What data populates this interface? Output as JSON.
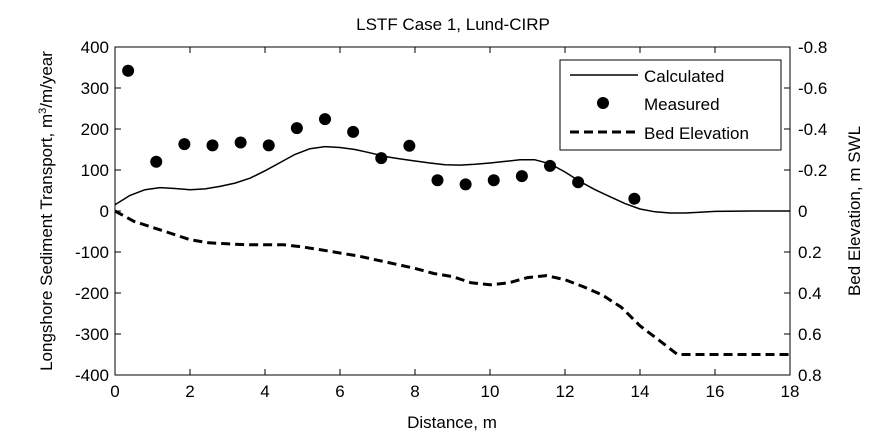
{
  "chart_data": {
    "type": "line",
    "title": "LSTF Case 1, Lund-CIRP",
    "xlabel": "Distance, m",
    "ylabel_left_prefix": "Longshore Sediment Transport, m",
    "ylabel_left_sup": "3",
    "ylabel_left_suffix": "/m/year",
    "ylabel_right": "Bed Elevation, m SWL",
    "xlim": [
      0,
      18
    ],
    "ylim_left": [
      -400,
      400
    ],
    "ylim_right": [
      0.8,
      -0.8
    ],
    "x_ticks": [
      "0",
      "2",
      "4",
      "6",
      "8",
      "10",
      "12",
      "14",
      "16",
      "18"
    ],
    "y_left_ticks": [
      "400",
      "300",
      "200",
      "100",
      "0",
      "-100",
      "-200",
      "-300",
      "-400"
    ],
    "y_right_ticks": [
      "-0.8",
      "-0.6",
      "-0.4",
      "-0.2",
      "0",
      "0.2",
      "0.4",
      "0.6",
      "0.8"
    ],
    "grid": false,
    "legend_position": "top-right",
    "legend": [
      "Calculated",
      "Measured",
      "Bed Elevation"
    ],
    "series": [
      {
        "name": "Calculated",
        "style": "solid-line",
        "axis": "left",
        "x": [
          0,
          0.4,
          0.8,
          1.2,
          1.6,
          2.0,
          2.4,
          2.8,
          3.2,
          3.6,
          4.0,
          4.4,
          4.8,
          5.2,
          5.6,
          6.0,
          6.4,
          6.8,
          7.2,
          7.6,
          8.0,
          8.4,
          8.8,
          9.2,
          9.6,
          10.0,
          10.4,
          10.8,
          11.2,
          11.6,
          12.0,
          12.4,
          12.8,
          13.2,
          13.6,
          14.0,
          14.4,
          14.8,
          15.2,
          15.6,
          16.0,
          17.0,
          18.0
        ],
        "y": [
          15,
          38,
          52,
          57,
          55,
          52,
          54,
          60,
          68,
          80,
          98,
          118,
          138,
          152,
          157,
          155,
          150,
          142,
          133,
          127,
          122,
          117,
          113,
          112,
          114,
          117,
          121,
          125,
          125,
          115,
          95,
          72,
          52,
          35,
          18,
          5,
          -2,
          -5,
          -5,
          -3,
          -1,
          0,
          0
        ]
      },
      {
        "name": "Measured",
        "style": "markers",
        "axis": "left",
        "x": [
          0.35,
          1.1,
          1.85,
          2.6,
          3.35,
          4.1,
          4.85,
          5.6,
          6.35,
          7.1,
          7.85,
          8.6,
          9.35,
          10.1,
          10.85,
          11.6,
          12.35,
          13.85
        ],
        "y": [
          342,
          120,
          163,
          160,
          167,
          160,
          202,
          224,
          193,
          129,
          159,
          75,
          65,
          75,
          85,
          110,
          70,
          30
        ]
      },
      {
        "name": "Bed Elevation",
        "style": "dashed-line",
        "axis": "right",
        "x": [
          0,
          0.5,
          1.0,
          1.5,
          2.0,
          2.5,
          3.0,
          3.5,
          4.0,
          4.5,
          5.0,
          5.5,
          6.0,
          6.5,
          7.0,
          7.5,
          8.0,
          8.5,
          9.0,
          9.5,
          10.0,
          10.5,
          11.0,
          11.5,
          12.0,
          12.5,
          13.0,
          13.5,
          14.0,
          14.5,
          15.0,
          16.0,
          17.0,
          18.0
        ],
        "y": [
          0.0,
          0.05,
          0.08,
          0.11,
          0.14,
          0.155,
          0.16,
          0.165,
          0.165,
          0.165,
          0.175,
          0.19,
          0.205,
          0.22,
          0.24,
          0.26,
          0.28,
          0.305,
          0.32,
          0.35,
          0.36,
          0.35,
          0.325,
          0.315,
          0.335,
          0.37,
          0.41,
          0.47,
          0.56,
          0.63,
          0.7,
          0.7,
          0.7,
          0.7
        ]
      }
    ]
  }
}
